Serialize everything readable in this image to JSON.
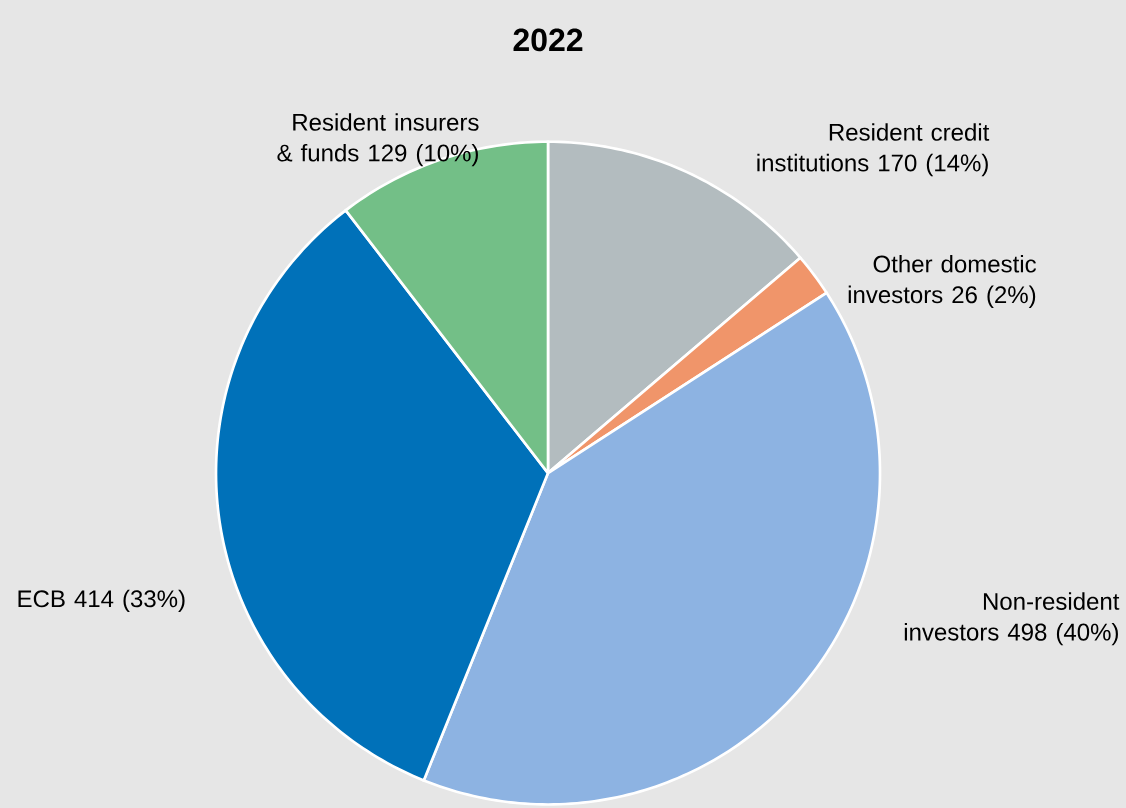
{
  "chart_data": {
    "type": "pie",
    "title": "2022",
    "categories": [
      "Resident credit institutions",
      "Other domestic investors",
      "Non-resident investors",
      "ECB",
      "Resident insurers & funds"
    ],
    "values": [
      170,
      26,
      498,
      414,
      129
    ],
    "value_labels": [
      "170 (14%)",
      "26 (2%)",
      "498 (40%)",
      "414 (33%)",
      "129 (10%)"
    ],
    "colors": [
      "#b3bcbf",
      "#f0956a",
      "#8db3e2",
      "#0071b9",
      "#73bf87"
    ]
  }
}
